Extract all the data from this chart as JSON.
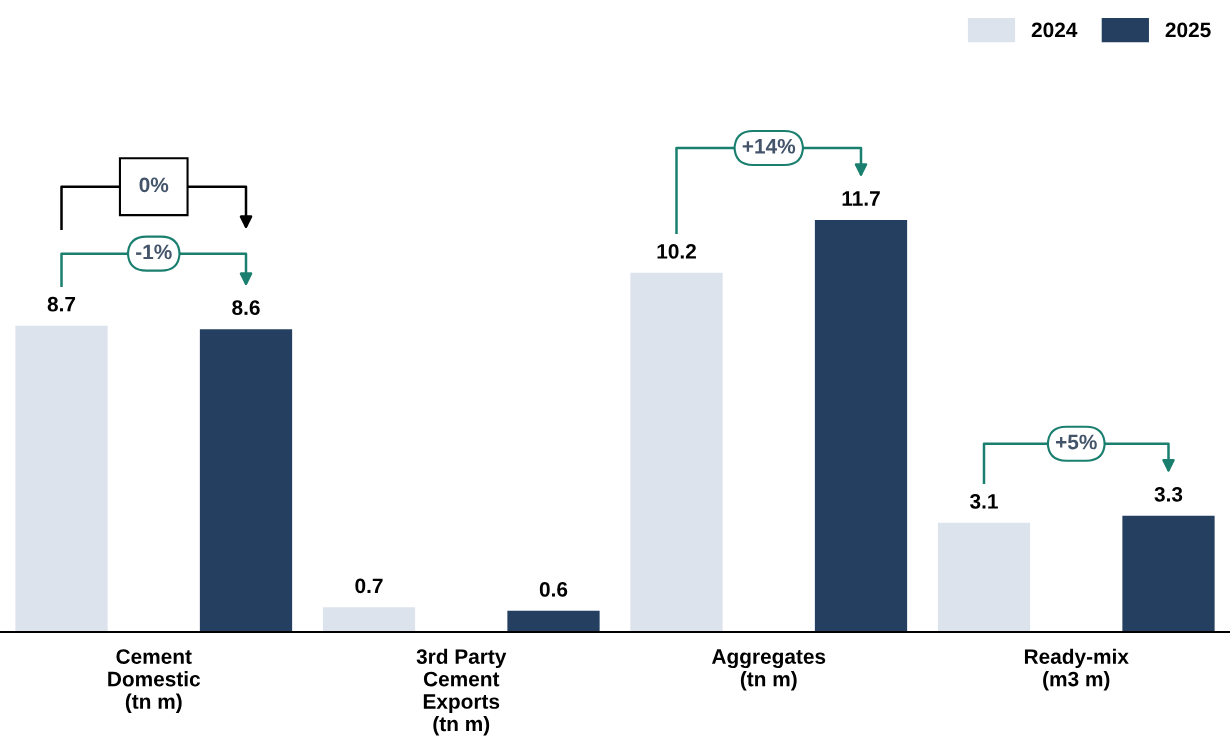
{
  "chart_data": {
    "type": "bar",
    "categories": [
      "Cement\nDomestic\n(tn m)",
      "3rd Party\nCement\nExports\n(tn m)",
      "Aggregates\n(tn m)",
      "Ready-mix\n(m3 m)"
    ],
    "series": [
      {
        "name": "2024",
        "color": "#dde3ec",
        "values": [
          8.7,
          0.7,
          10.2,
          3.1
        ]
      },
      {
        "name": "2025",
        "color": "#243f60",
        "values": [
          8.6,
          0.6,
          11.7,
          3.3
        ]
      }
    ],
    "data_labels": true,
    "legend": "top right",
    "annotations": [
      "0%",
      "-1%",
      "+14%",
      "+5%"
    ]
  }
}
